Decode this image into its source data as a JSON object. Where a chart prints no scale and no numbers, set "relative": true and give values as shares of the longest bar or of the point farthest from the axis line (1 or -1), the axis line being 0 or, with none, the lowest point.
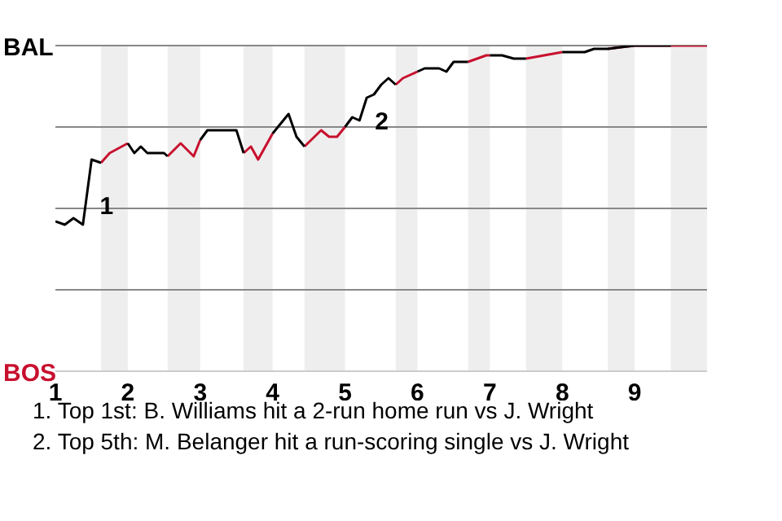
{
  "chart_data": {
    "type": "line",
    "relative": true,
    "x": [
      1,
      1.13,
      1.25,
      1.38,
      1.5,
      1.63,
      1.75,
      2,
      2.09,
      2.18,
      2.27,
      2.5,
      2.55,
      2.73,
      2.91,
      3,
      3.1,
      3.3,
      3.5,
      3.6,
      3.7,
      3.8,
      4,
      4.22,
      4.33,
      4.44,
      4.67,
      4.78,
      4.89,
      5,
      5.1,
      5.2,
      5.3,
      5.4,
      5.5,
      5.6,
      5.7,
      5.8,
      6,
      6.1,
      6.3,
      6.4,
      6.5,
      6.7,
      6.95,
      7,
      7.17,
      7.33,
      7.5,
      7.75,
      8,
      8.31,
      8.44,
      8.63,
      9,
      9.5,
      10
    ],
    "series": [
      {
        "color": "#000000",
        "values": [
          0.46,
          0.45,
          0.47,
          0.45,
          0.65,
          0.64,
          null,
          0.7,
          0.67,
          0.69,
          0.67,
          0.67,
          0.66,
          null,
          null,
          0.71,
          0.74,
          0.74,
          0.74,
          0.67,
          null,
          null,
          0.73,
          0.79,
          0.72,
          0.69,
          null,
          null,
          null,
          0.75,
          0.78,
          0.77,
          0.84,
          0.85,
          0.88,
          0.9,
          0.88,
          null,
          0.92,
          0.93,
          0.93,
          0.92,
          0.95,
          0.95,
          null,
          0.97,
          0.97,
          0.96,
          0.96,
          null,
          0.98,
          0.98,
          0.99,
          0.99,
          1,
          1,
          null
        ]
      },
      {
        "color": "#c8102e",
        "values": [
          null,
          null,
          null,
          null,
          null,
          0.64,
          0.67,
          0.7,
          null,
          null,
          null,
          null,
          0.66,
          0.7,
          0.66,
          0.71,
          null,
          null,
          null,
          0.67,
          0.69,
          0.65,
          0.73,
          null,
          null,
          0.69,
          0.74,
          0.72,
          0.72,
          0.75,
          null,
          null,
          null,
          null,
          null,
          null,
          0.88,
          0.9,
          0.92,
          null,
          null,
          null,
          null,
          0.95,
          0.97,
          0.97,
          null,
          null,
          0.96,
          0.97,
          0.98,
          null,
          null,
          0.99,
          1,
          1,
          1
        ]
      }
    ],
    "xlim": [
      1,
      10
    ],
    "xticks": [
      1,
      2,
      3,
      4,
      5,
      6,
      7,
      8,
      9
    ],
    "ref_lines": [
      {
        "axis": "y",
        "value": 0.25,
        "color": "#888888"
      },
      {
        "axis": "y",
        "value": 0.5,
        "color": "#888888"
      },
      {
        "axis": "y",
        "value": 0.75,
        "color": "#888888"
      },
      {
        "axis": "y",
        "value": 1,
        "color": "#888888"
      }
    ],
    "bands": [
      {
        "axis": "x",
        "from": 1.63,
        "to": 2,
        "color": "#eeeeee"
      },
      {
        "axis": "x",
        "from": 2.55,
        "to": 3,
        "color": "#eeeeee"
      },
      {
        "axis": "x",
        "from": 3.6,
        "to": 4,
        "color": "#eeeeee"
      },
      {
        "axis": "x",
        "from": 4.44,
        "to": 5,
        "color": "#eeeeee"
      },
      {
        "axis": "x",
        "from": 5.7,
        "to": 6,
        "color": "#eeeeee"
      },
      {
        "axis": "x",
        "from": 6.7,
        "to": 7,
        "color": "#eeeeee"
      },
      {
        "axis": "x",
        "from": 7.5,
        "to": 8,
        "color": "#eeeeee"
      },
      {
        "axis": "x",
        "from": 8.63,
        "to": 9,
        "color": "#eeeeee"
      },
      {
        "axis": "x",
        "from": 9.5,
        "to": 10,
        "color": "#eeeeee"
      }
    ],
    "annotations": [
      "BAL",
      "BOS",
      {
        "text": "1",
        "x": 1.5,
        "y": 0.51
      },
      {
        "text": "2",
        "x": 5.3,
        "y": 0.77
      },
      "1. Top 1st: B. Williams hit a 2-run home run vs J. Wright",
      "2. Top 5th: M. Belanger hit a run-scoring single vs J. Wright"
    ]
  }
}
